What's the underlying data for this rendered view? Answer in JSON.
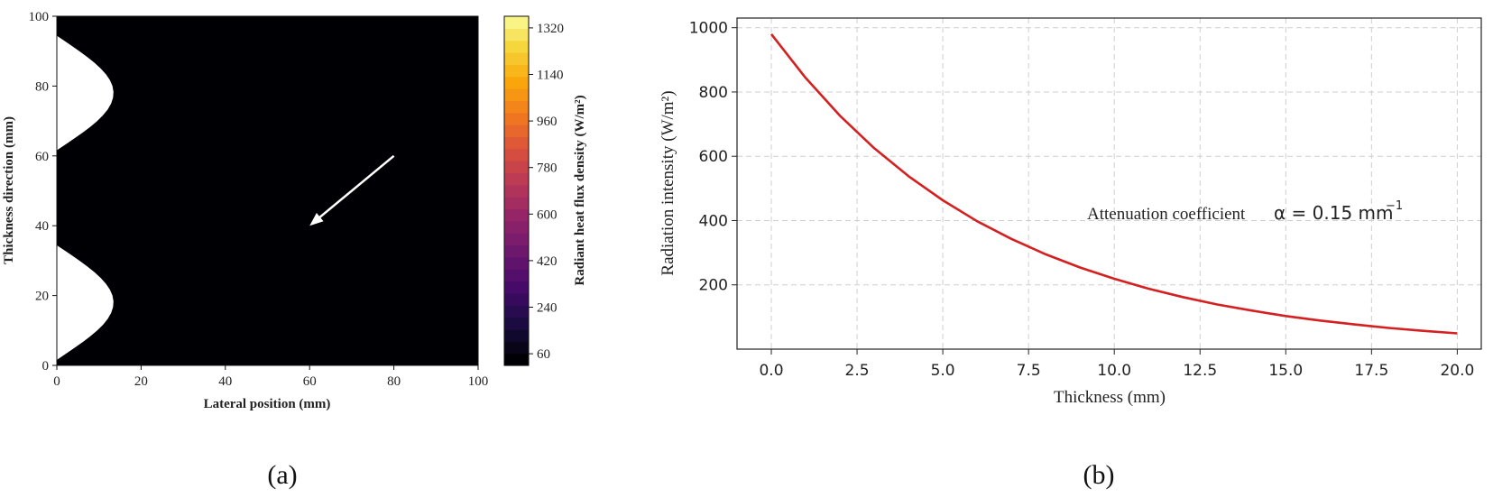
{
  "panel_a": {
    "caption": "(a)",
    "xlabel": "Lateral position (mm)",
    "ylabel": "Thickness direction (mm)",
    "colorbar_label": "Radiant heat flux density (W/m²)",
    "x_ticks": [
      "0",
      "20",
      "40",
      "60",
      "80",
      "100"
    ],
    "y_ticks": [
      "0",
      "20",
      "40",
      "60",
      "80",
      "100"
    ],
    "colorbar_ticks": [
      "60",
      "240",
      "420",
      "600",
      "780",
      "960",
      "1140",
      "1320"
    ]
  },
  "panel_b": {
    "caption": "(b)",
    "annotation": "Attenuation coefficient",
    "annotation_math": "α = 0.15 mm",
    "annotation_sup": "−1"
  },
  "chart_data": [
    {
      "type": "heatmap",
      "xlabel": "Lateral position (mm)",
      "ylabel": "Thickness direction (mm)",
      "colorbar_label": "Radiant heat flux density (W/m²)",
      "xlim": [
        0,
        100
      ],
      "ylim": [
        0,
        100
      ],
      "zlim": [
        60,
        1320
      ],
      "colormap": "inferno",
      "contour_levels": 29,
      "peaks": [
        {
          "x": 0,
          "y": 18,
          "value": 1320
        },
        {
          "x": 0,
          "y": 78,
          "value": 1320
        }
      ],
      "minimum": {
        "x": 100,
        "y": 47,
        "value": 60
      },
      "arrow": {
        "from": [
          80,
          60
        ],
        "to": [
          60,
          40
        ],
        "color": "#ffffff"
      }
    },
    {
      "type": "line",
      "xlabel": "Thickness (mm)",
      "ylabel": "Radiation intensity (W/m²)",
      "x_tick_labels": [
        "0.0",
        "2.5",
        "5.0",
        "7.5",
        "10.0",
        "12.5",
        "15.0",
        "17.5",
        "20.0"
      ],
      "y_tick_labels": [
        "200",
        "400",
        "600",
        "800",
        "1000"
      ],
      "xlim": [
        -1,
        20.7
      ],
      "ylim": [
        0,
        1030
      ],
      "grid": true,
      "series": [
        {
          "color": "#d42020",
          "x": [
            0,
            1,
            2,
            3,
            4,
            5,
            6,
            7,
            8,
            9,
            10,
            11,
            12,
            13,
            14,
            15,
            16,
            17,
            18,
            19,
            20
          ],
          "values": [
            980,
            844,
            726,
            625,
            538,
            463,
            398,
            343,
            295,
            254,
            219,
            188,
            162,
            139,
            120,
            103,
            89,
            77,
            66,
            57,
            49
          ]
        }
      ],
      "annotation": "Attenuation coefficient α = 0.15 mm⁻¹"
    }
  ]
}
